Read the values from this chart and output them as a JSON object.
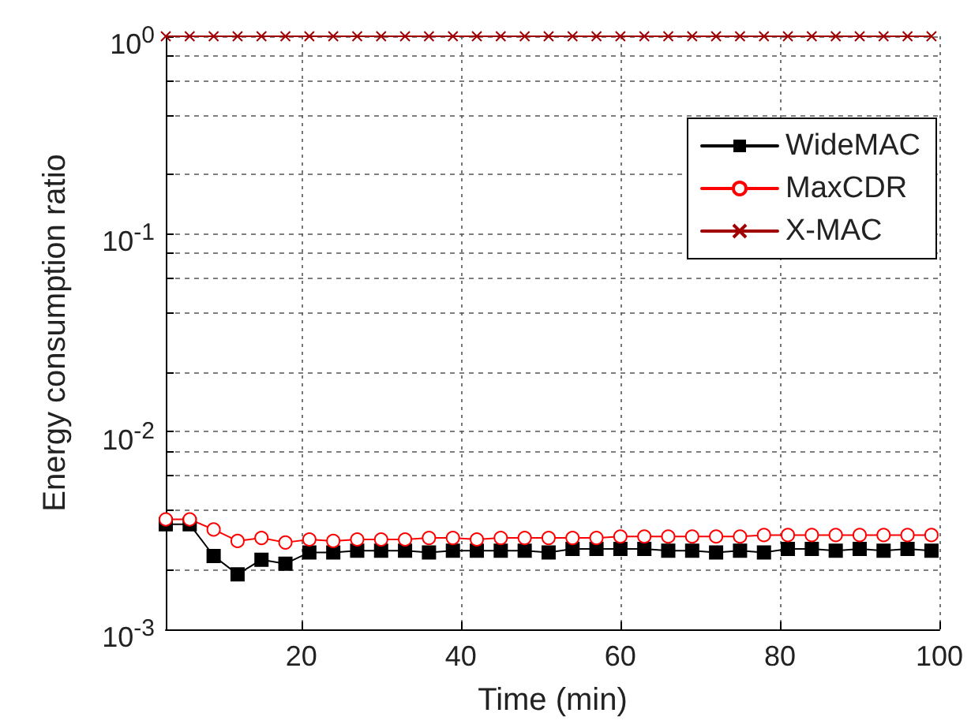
{
  "chart_data": {
    "type": "line",
    "xlabel": "Time (min)",
    "ylabel": "Energy consumption ratio",
    "log": "y",
    "grid": true,
    "legend": "top right",
    "line_style": "solid",
    "x": [
      3,
      6,
      9,
      12,
      15,
      18,
      21,
      24,
      27,
      30,
      33,
      36,
      39,
      42,
      45,
      48,
      51,
      54,
      57,
      60,
      63,
      66,
      69,
      72,
      75,
      78,
      81,
      84,
      87,
      90,
      93,
      96,
      99
    ],
    "xlim": [
      3,
      100
    ],
    "xticks": [
      20,
      40,
      60,
      80,
      100
    ],
    "ylim": [
      0.001,
      1
    ],
    "yticks": [
      {
        "value": 0.001,
        "label": "10$^{-3}$"
      },
      {
        "value": 0.002,
        "label": null
      },
      {
        "value": 0.004,
        "label": null
      },
      {
        "value": 0.006,
        "label": null
      },
      {
        "value": 0.008,
        "label": null
      },
      {
        "value": 0.01,
        "label": "10$^{-2}$"
      },
      {
        "value": 0.02,
        "label": null
      },
      {
        "value": 0.04,
        "label": null
      },
      {
        "value": 0.06,
        "label": null
      },
      {
        "value": 0.08,
        "label": null
      },
      {
        "value": 0.1,
        "label": "10$^{-1}$"
      },
      {
        "value": 0.2,
        "label": null
      },
      {
        "value": 0.4,
        "label": null
      },
      {
        "value": 0.6,
        "label": null
      },
      {
        "value": 0.8,
        "label": null
      },
      {
        "value": 1,
        "label": "10$^{0}$"
      }
    ],
    "series": [
      {
        "name": "WideMAC",
        "color": "#000000",
        "marker": "square",
        "values": [
          0.0034,
          0.0034,
          0.00235,
          0.0019,
          0.00225,
          0.00215,
          0.00245,
          0.00245,
          0.0025,
          0.0025,
          0.0025,
          0.00245,
          0.0025,
          0.0025,
          0.0025,
          0.0025,
          0.00245,
          0.00255,
          0.00255,
          0.00255,
          0.00255,
          0.0025,
          0.0025,
          0.00245,
          0.0025,
          0.00245,
          0.00255,
          0.00255,
          0.0025,
          0.00255,
          0.0025,
          0.00255,
          0.0025
        ]
      },
      {
        "name": "MaxCDR",
        "color": "#ff0000",
        "marker": "circle",
        "values": [
          0.0036,
          0.0036,
          0.0032,
          0.0028,
          0.0029,
          0.00275,
          0.00285,
          0.0028,
          0.00285,
          0.00285,
          0.00285,
          0.0029,
          0.0029,
          0.00285,
          0.0029,
          0.0029,
          0.0029,
          0.0029,
          0.0029,
          0.00295,
          0.00295,
          0.00295,
          0.00295,
          0.00295,
          0.00295,
          0.003,
          0.003,
          0.003,
          0.003,
          0.003,
          0.003,
          0.003,
          0.003
        ]
      },
      {
        "name": "X-MAC",
        "color": "#a00000",
        "marker": "cross",
        "values": [
          1,
          1,
          1,
          1,
          1,
          1,
          1,
          1,
          1,
          1,
          1,
          1,
          1,
          1,
          1,
          1,
          1,
          1,
          1,
          1,
          1,
          1,
          1,
          1,
          1,
          1,
          1,
          1,
          1,
          1,
          1,
          1,
          1
        ]
      }
    ]
  }
}
